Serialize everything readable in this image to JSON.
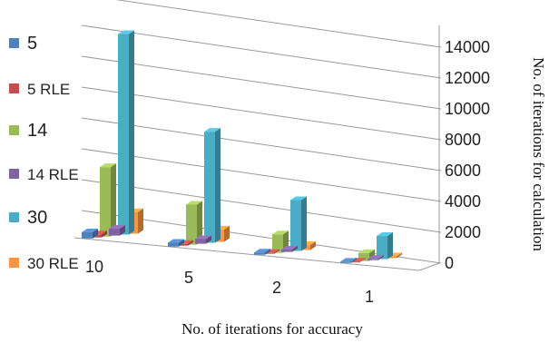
{
  "chart_data": {
    "type": "bar",
    "title": "",
    "xlabel": "No. of iterations for accuracy",
    "ylabel": "No. of iterations for calculation",
    "categories": [
      "10",
      "5",
      "2",
      "1"
    ],
    "ylim": [
      0,
      14000
    ],
    "yticks": [
      "0",
      "2000",
      "4000",
      "6000",
      "8000",
      "10000",
      "12000",
      "14000"
    ],
    "legend_position": "left",
    "series": [
      {
        "name": "5",
        "color": "#4F81BD",
        "values": [
          400,
          250,
          150,
          80
        ]
      },
      {
        "name": "5 RLE",
        "color": "#C0504D",
        "values": [
          200,
          120,
          60,
          30
        ]
      },
      {
        "name": "14",
        "color": "#9BBB59",
        "values": [
          4500,
          2600,
          1200,
          520
        ]
      },
      {
        "name": "14 RLE",
        "color": "#8064A2",
        "values": [
          450,
          300,
          150,
          80
        ]
      },
      {
        "name": "30",
        "color": "#4BACC6",
        "values": [
          13000,
          7200,
          3300,
          1500
        ]
      },
      {
        "name": "30 RLE",
        "color": "#F79646",
        "values": [
          1400,
          800,
          320,
          120
        ]
      }
    ],
    "grid": true
  }
}
